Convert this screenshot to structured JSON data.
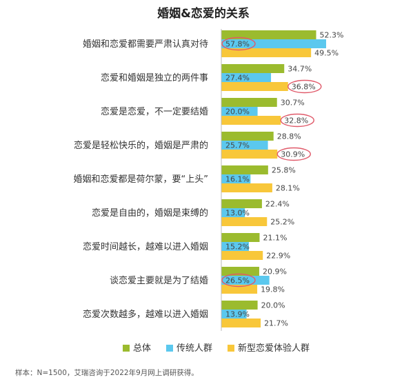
{
  "chart_data": {
    "type": "bar",
    "orientation": "horizontal",
    "title": "婚姻&恋爱的关系",
    "categories": [
      "婚姻和恋爱都需要严肃认真对待",
      "恋爱和婚姻是独立的两件事",
      "恋爱是恋爱，不一定要结婚",
      "恋爱是轻松快乐的，婚姻是严肃的",
      "婚姻和恋爱都是荷尔蒙，要“上头”",
      "恋爱是自由的，婚姻是束缚的",
      "恋爱时间越长，越难以进入婚姻",
      "谈恋爱主要就是为了结婚",
      "恋爱次数越多，越难以进入婚姻"
    ],
    "series": [
      {
        "name": "总体",
        "color": "#9bbb2e",
        "values": [
          52.3,
          34.7,
          30.7,
          28.8,
          25.8,
          22.4,
          21.1,
          20.9,
          20.0
        ],
        "labels": [
          "52.3%",
          "34.7%",
          "30.7%",
          "28.8%",
          "25.8%",
          "22.4%",
          "21.1%",
          "20.9%",
          "20.0%"
        ]
      },
      {
        "name": "传统人群",
        "color": "#5bc8ee",
        "values": [
          57.8,
          27.4,
          20.0,
          25.7,
          16.1,
          13.0,
          15.2,
          26.5,
          13.9
        ],
        "labels": [
          "57.8%",
          "27.4%",
          "20.0%",
          "25.7%",
          "16.1%",
          "13.0%",
          "15.2%",
          "26.5%",
          "13.9%"
        ]
      },
      {
        "name": "新型恋爱体验人群",
        "color": "#f8c73a",
        "values": [
          49.5,
          36.8,
          32.8,
          30.9,
          28.1,
          25.2,
          22.9,
          19.8,
          21.7
        ],
        "labels": [
          "49.5%",
          "36.8%",
          "32.8%",
          "30.9%",
          "28.1%",
          "25.2%",
          "22.9%",
          "19.8%",
          "21.7%"
        ]
      }
    ],
    "highlighted": [
      {
        "category_index": 0,
        "series_index": 1
      },
      {
        "category_index": 1,
        "series_index": 2
      },
      {
        "category_index": 2,
        "series_index": 2
      },
      {
        "category_index": 3,
        "series_index": 2
      },
      {
        "category_index": 7,
        "series_index": 1
      }
    ],
    "highlight_color": "#e05a6a",
    "xlim": [
      0,
      60
    ],
    "grid": false,
    "legend_position": "bottom",
    "axis_color": "#b9b9b9"
  },
  "footnote": "样本：N=1500，艾瑞咨询于2022年9月网上调研获得。"
}
